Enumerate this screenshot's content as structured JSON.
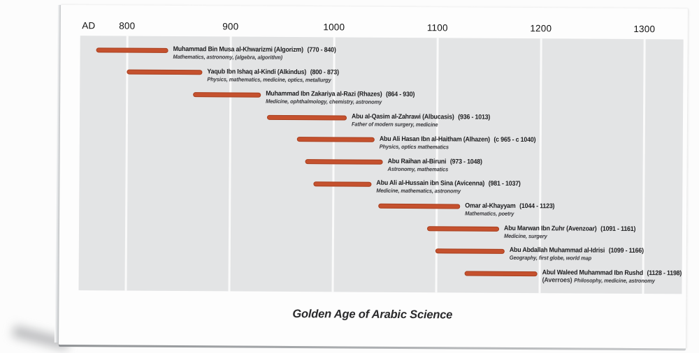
{
  "chart_data": {
    "type": "bar",
    "variant": "horizontal-gantt-timeline",
    "title": "Golden Age of Arabic Science",
    "era_label": "AD",
    "x_ticks": [
      "800",
      "900",
      "1000",
      "1100",
      "1200",
      "1300"
    ],
    "x_tick_years": [
      800,
      900,
      1000,
      1100,
      1200,
      1300
    ],
    "xlim": [
      755,
      1340
    ],
    "grid": "white vertical century gridlines on gray background",
    "legend": "none",
    "colors": {
      "bar": "#c5512e",
      "bar_edge": "#a0441f",
      "plot_background": "#e3e4e5",
      "gridline": "#fafafa",
      "text": "#1c1c1e"
    },
    "scientists": [
      {
        "name": "Muhammad Bin Musa al-Khwarizmi (Algorizm)",
        "years": "(770 - 840)",
        "start": 770,
        "end": 840,
        "info_prefix": "",
        "info": "Mathematics, astronomy, (algebra, algorithm)"
      },
      {
        "name": "Yaqub Ibn Ishaq al-Kindi (Alkindus)",
        "years": "(800 - 873)",
        "start": 800,
        "end": 873,
        "info_prefix": "",
        "info": "Physics, mathematics, medicine, optics, metallurgy"
      },
      {
        "name": "Muhammad Ibn Zakariya al-Razi (Rhazes)",
        "years": "(864 - 930)",
        "start": 864,
        "end": 930,
        "info_prefix": "",
        "info": "Medicine, ophthalmology, chemistry, astronomy"
      },
      {
        "name": "Abu al-Qasim al-Zahrawi (Albucasis)",
        "years": "(936 - 1013)",
        "start": 936,
        "end": 1013,
        "info_prefix": "",
        "info": "Father of modern surgery, medicine"
      },
      {
        "name": "Abu Ali Hasan Ibn al-Haitham (Alhazen)",
        "years": "(c 965 - c 1040)",
        "start": 965,
        "end": 1040,
        "info_prefix": "",
        "info": "Physics, optics mathematics"
      },
      {
        "name": "Abu Raihan al-Biruni",
        "years": "(973 - 1048)",
        "start": 973,
        "end": 1048,
        "info_prefix": "",
        "info": "Astronomy, mathematics"
      },
      {
        "name": "Abu Ali al-Hussain ibn Sina (Avicenna)",
        "years": "(981 - 1037)",
        "start": 981,
        "end": 1037,
        "info_prefix": "",
        "info": "Medicine, mathematics, astronomy"
      },
      {
        "name": "Omar al-Khayyam",
        "years": "(1044 - 1123)",
        "start": 1044,
        "end": 1123,
        "info_prefix": "",
        "info": "Mathematics, poetry"
      },
      {
        "name": "Abu Marwan Ibn Zuhr (Avenzoar)",
        "years": "(1091 - 1161)",
        "start": 1091,
        "end": 1161,
        "info_prefix": "",
        "info": "Medicine, surgery"
      },
      {
        "name": "Abu Abdallah Muhammad al-Idrisi",
        "years": "(1099 - 1166)",
        "start": 1099,
        "end": 1166,
        "info_prefix": "",
        "info": "Geography, first globe, world map"
      },
      {
        "name": "Abul Waleed Muhammad Ibn Rushd",
        "years": "(1128 - 1198)",
        "start": 1128,
        "end": 1198,
        "info_prefix": "(Averroes)",
        "info": "Philosophy, medicine, astronomy"
      }
    ]
  }
}
